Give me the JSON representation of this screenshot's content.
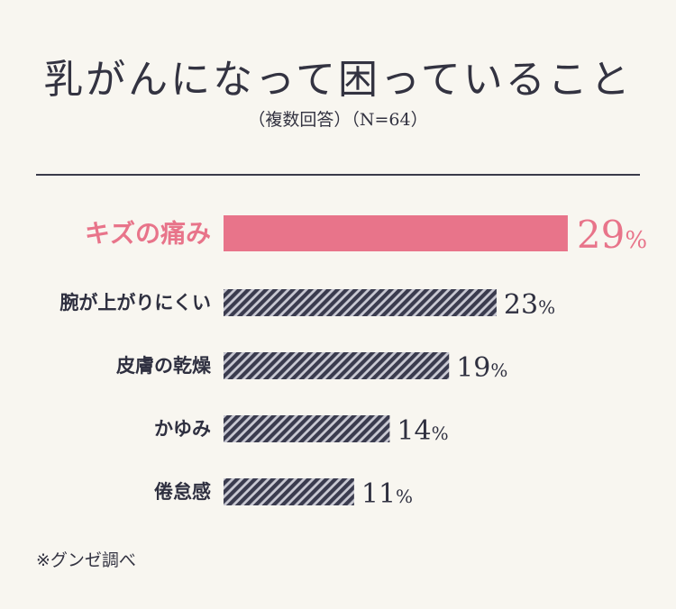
{
  "title": "乳がんになって困っていること",
  "subtitle": "（複数回答）（N=64）",
  "footnote": "※グンゼ調べ",
  "colors": {
    "highlight": "#e8748a",
    "bar": "#3a3b4e",
    "text": "#2f3040"
  },
  "chart_data": {
    "type": "bar",
    "orientation": "horizontal",
    "unit": "%",
    "categories": [
      "キズの痛み",
      "腕が上がりにくい",
      "皮膚の乾燥",
      "かゆみ",
      "倦怠感"
    ],
    "values": [
      29,
      23,
      19,
      14,
      11
    ],
    "highlighted_category": "キズの痛み",
    "grid": false,
    "legend": "none"
  }
}
